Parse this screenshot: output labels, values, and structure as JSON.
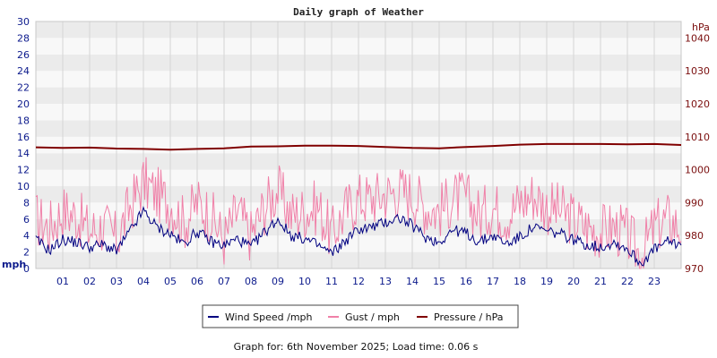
{
  "chart_data": {
    "type": "line",
    "title": "Daily graph of Weather",
    "footer": "Graph for: 6th November 2025; Load time: 0.06 s",
    "xlabel": "",
    "x_tick_labels": [
      "01",
      "02",
      "03",
      "04",
      "05",
      "06",
      "07",
      "08",
      "09",
      "10",
      "11",
      "12",
      "13",
      "14",
      "15",
      "16",
      "17",
      "18",
      "19",
      "20",
      "21",
      "22",
      "23"
    ],
    "x_range_hours": [
      0,
      24
    ],
    "y_left": {
      "label": "mph",
      "range": [
        0,
        30
      ],
      "ticks": [
        0,
        2,
        4,
        6,
        8,
        10,
        12,
        14,
        16,
        18,
        20,
        22,
        24,
        26,
        28,
        30
      ]
    },
    "y_right": {
      "label": "hPa",
      "range": [
        970,
        1045
      ],
      "ticks": [
        970,
        980,
        990,
        1000,
        1010,
        1020,
        1030,
        1040
      ]
    },
    "grid": true,
    "legend_position": "bottom",
    "series": [
      {
        "name": "Wind Speed /mph",
        "color": "#000080",
        "axis": "left",
        "hours": [
          0,
          0.5,
          1,
          1.5,
          2,
          2.5,
          3,
          3.5,
          4,
          4.5,
          5,
          5.5,
          6,
          6.5,
          7,
          7.5,
          8,
          8.5,
          9,
          9.5,
          10,
          10.5,
          11,
          11.5,
          12,
          12.5,
          13,
          13.5,
          14,
          14.5,
          15,
          15.5,
          16,
          16.5,
          17,
          17.5,
          18,
          18.5,
          19,
          19.5,
          20,
          20.5,
          21,
          21.5,
          22,
          22.5,
          23,
          23.5,
          24
        ],
        "values": [
          3.5,
          2.2,
          3.5,
          3.2,
          2.6,
          2.9,
          2.1,
          4.5,
          7.0,
          5.0,
          4.2,
          3.0,
          4.5,
          3.3,
          2.8,
          3.6,
          2.6,
          4.4,
          6.0,
          4.0,
          3.6,
          2.8,
          1.8,
          3.3,
          4.8,
          5.0,
          5.6,
          6.2,
          5.2,
          3.8,
          3.2,
          4.7,
          4.3,
          3.2,
          4.0,
          3.0,
          3.8,
          5.0,
          4.5,
          4.2,
          3.5,
          2.9,
          2.6,
          3.2,
          2.4,
          0.6,
          2.3,
          3.2,
          3.0
        ]
      },
      {
        "name": "Gust / mph",
        "color": "#f080a8",
        "axis": "left",
        "hours": [
          0,
          0.5,
          1,
          1.5,
          2,
          2.5,
          3,
          3.5,
          4,
          4.5,
          5,
          5.5,
          6,
          6.5,
          7,
          7.5,
          8,
          8.5,
          9,
          9.5,
          10,
          10.5,
          11,
          11.5,
          12,
          12.5,
          13,
          13.5,
          14,
          14.5,
          15,
          15.5,
          16,
          16.5,
          17,
          17.5,
          18,
          18.5,
          19,
          19.5,
          20,
          20.5,
          21,
          21.5,
          22,
          22.5,
          23,
          23.5,
          24
        ],
        "values": [
          6.0,
          5.0,
          7.0,
          6.5,
          4.5,
          5.2,
          3.5,
          7.5,
          10.5,
          9.0,
          8.0,
          5.5,
          8.0,
          6.5,
          3.5,
          7.0,
          4.0,
          7.5,
          9.5,
          6.5,
          7.0,
          7.5,
          4.0,
          7.0,
          8.5,
          8.5,
          9.0,
          9.5,
          9.0,
          7.5,
          7.0,
          8.5,
          8.5,
          6.5,
          7.5,
          6.5,
          8.0,
          9.0,
          7.5,
          7.0,
          6.0,
          5.0,
          4.5,
          5.0,
          4.0,
          1.5,
          5.0,
          6.0,
          5.0
        ]
      },
      {
        "name": "Pressure / hPa",
        "color": "#800000",
        "axis": "right",
        "hours": [
          0,
          1,
          2,
          3,
          4,
          5,
          6,
          7,
          8,
          9,
          10,
          11,
          12,
          13,
          14,
          15,
          16,
          17,
          18,
          19,
          20,
          21,
          22,
          23,
          24
        ],
        "values": [
          1006.8,
          1006.6,
          1006.7,
          1006.4,
          1006.3,
          1006.1,
          1006.3,
          1006.5,
          1007.0,
          1007.1,
          1007.3,
          1007.3,
          1007.2,
          1006.9,
          1006.6,
          1006.5,
          1006.9,
          1007.2,
          1007.6,
          1007.8,
          1007.8,
          1007.8,
          1007.7,
          1007.8,
          1007.5
        ]
      }
    ]
  }
}
